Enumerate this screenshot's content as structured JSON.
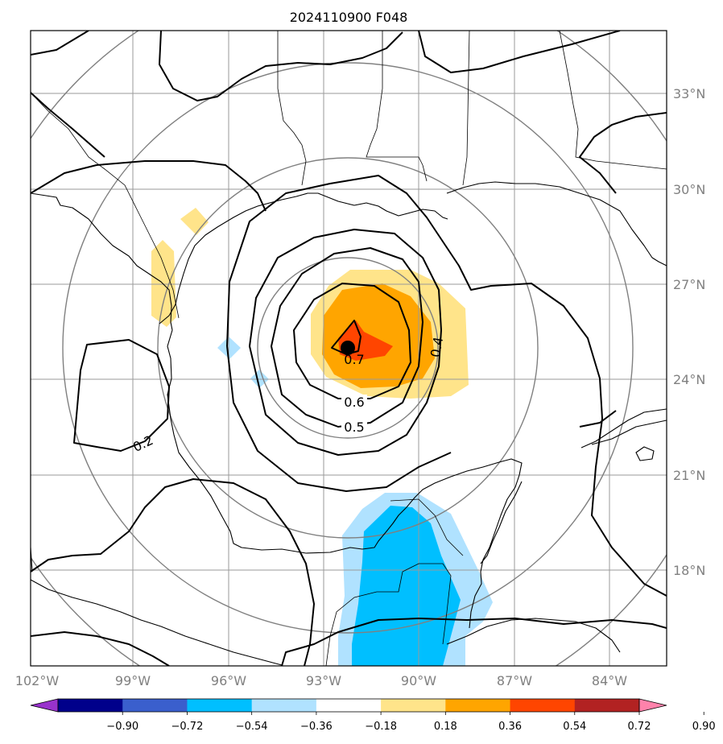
{
  "title": "2024110900 F048",
  "map": {
    "lon_labels": [
      "102°W",
      "99°W",
      "96°W",
      "93°W",
      "90°W",
      "87°W",
      "84°W"
    ],
    "lat_labels": [
      "33°N",
      "30°N",
      "27°N",
      "24°N",
      "21°N",
      "18°N"
    ],
    "contour_labels": [
      "0.7",
      "0.6",
      "0.5",
      "0.4",
      "0.2"
    ],
    "storm_center": {
      "lon": -91.7,
      "lat": 25.0
    },
    "colors": {
      "gridline": "#9a9a9a",
      "range_ring": "#808080",
      "axis_label": "#808080"
    }
  },
  "colorbar": {
    "colors": [
      "#9932CC",
      "#00008B",
      "#3A5FCD",
      "#00BFFF",
      "#B0E2FF",
      "#FFFFFF",
      "#FFE48A",
      "#FFA500",
      "#FF4500",
      "#B22222",
      "#FF82AB"
    ],
    "tick_labels": [
      "−0.90",
      "−0.72",
      "−0.54",
      "−0.36",
      "−0.18",
      "0.18",
      "0.36",
      "0.54",
      "0.72",
      "0.90"
    ]
  }
}
